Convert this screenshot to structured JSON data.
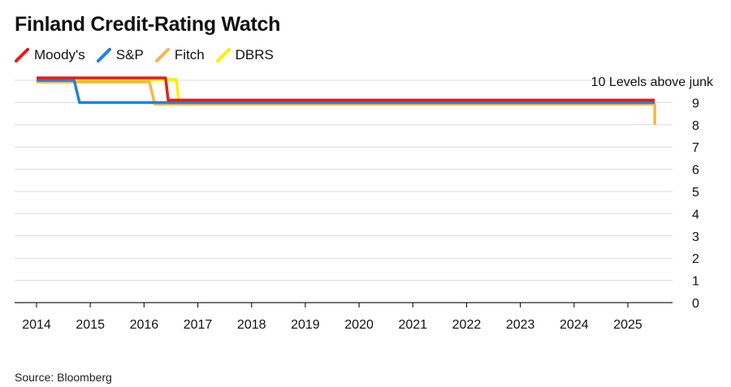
{
  "title": "Finland Credit-Rating Watch",
  "source": "Source: Bloomberg",
  "chart_data": {
    "type": "line",
    "title": "Finland Credit-Rating Watch",
    "xlabel": "",
    "ylabel": "",
    "xlim": [
      2014,
      2025.9
    ],
    "ylim": [
      0,
      10
    ],
    "x_ticks": [
      "2014",
      "2015",
      "2016",
      "2017",
      "2018",
      "2019",
      "2020",
      "2021",
      "2022",
      "2023",
      "2024",
      "2025"
    ],
    "y_ticks": [
      0,
      1,
      2,
      3,
      4,
      5,
      6,
      7,
      8,
      9
    ],
    "annotation": "10 Levels above junk",
    "grid": true,
    "legend_position": "top-left",
    "series": [
      {
        "name": "Moody's",
        "color": "#e0201b",
        "points": [
          [
            2014.0,
            10
          ],
          [
            2016.4,
            10
          ],
          [
            2016.45,
            9
          ],
          [
            2025.5,
            9
          ]
        ]
      },
      {
        "name": "S&P",
        "color": "#1f83d9",
        "points": [
          [
            2014.0,
            10
          ],
          [
            2014.7,
            10
          ],
          [
            2014.8,
            9
          ],
          [
            2025.5,
            9
          ]
        ]
      },
      {
        "name": "Fitch",
        "color": "#f7b649",
        "points": [
          [
            2014.0,
            10
          ],
          [
            2016.1,
            10
          ],
          [
            2016.2,
            9
          ],
          [
            2025.5,
            9
          ],
          [
            2025.5,
            8
          ]
        ]
      },
      {
        "name": "DBRS",
        "color": "#ffed00",
        "points": [
          [
            2014.0,
            10
          ],
          [
            2016.6,
            10
          ],
          [
            2016.65,
            9
          ],
          [
            2025.5,
            9
          ]
        ]
      }
    ]
  }
}
